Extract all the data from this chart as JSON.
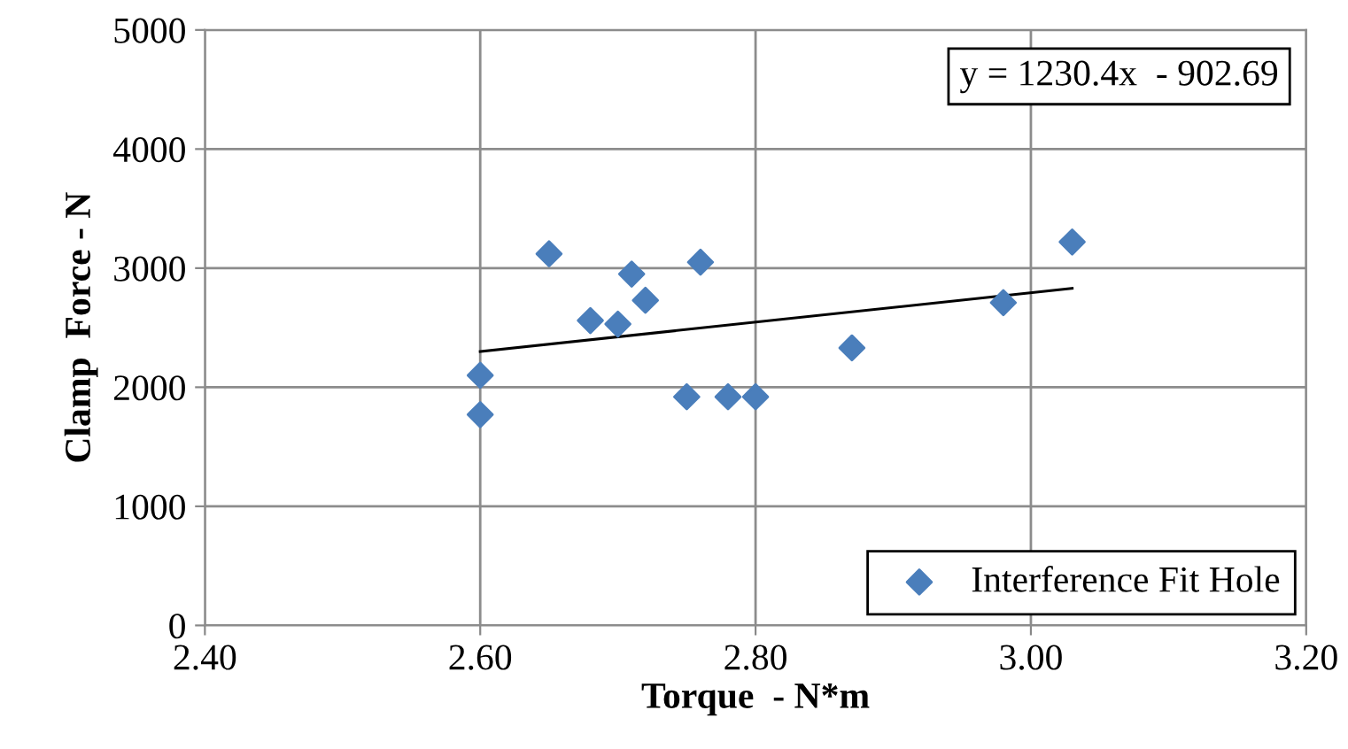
{
  "chart_data": {
    "type": "scatter",
    "xlabel": "Torque  - N*m",
    "ylabel": "Clamp  Force - N",
    "xlim": [
      2.4,
      3.2
    ],
    "xticks": [
      {
        "value": 2.4,
        "label": "2.40"
      },
      {
        "value": 2.6,
        "label": "2.60"
      },
      {
        "value": 2.8,
        "label": "2.80"
      },
      {
        "value": 3.0,
        "label": "3.00"
      },
      {
        "value": 3.2,
        "label": "3.20"
      }
    ],
    "ylim": [
      0,
      5000
    ],
    "yticks": [
      0,
      1000,
      2000,
      3000,
      4000,
      5000
    ],
    "grid": true,
    "legend": "bottom right",
    "annotations": [
      "y = 1230.4x  - 902.69"
    ],
    "series": [
      {
        "name": "Interference Fit Hole",
        "marker": "diamond",
        "color": "#4a7ebb",
        "x": [
          2.6,
          2.6,
          2.65,
          2.68,
          2.7,
          2.71,
          2.72,
          2.75,
          2.76,
          2.78,
          2.8,
          2.87,
          2.98,
          3.03
        ],
        "values": [
          2100,
          1770,
          3120,
          2560,
          2530,
          2950,
          2730,
          1920,
          3050,
          1920,
          1920,
          2330,
          2710,
          3220
        ]
      },
      {
        "type": "line",
        "color": "#000000",
        "x": [
          2.6,
          3.03
        ],
        "values": [
          2300,
          2830
        ]
      }
    ]
  }
}
